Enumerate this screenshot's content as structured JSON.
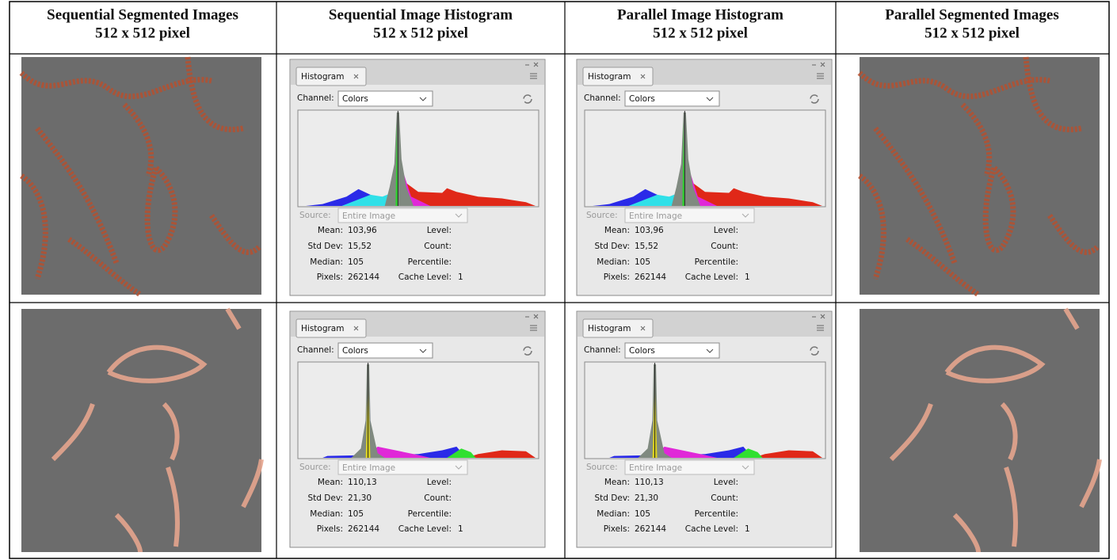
{
  "header": [
    {
      "title": "Sequential Segmented Images",
      "subtitle": "512 x 512 pixel"
    },
    {
      "title": "Sequential Image Histogram",
      "subtitle": "512 x 512 pixel"
    },
    {
      "title": "Parallel Image Histogram",
      "subtitle": "512 x 512 pixel"
    },
    {
      "title": "Parallel Segmented Images",
      "subtitle": "512 x 512 pixel"
    }
  ],
  "rows": [
    {
      "histograms": [
        {
          "tab": "Histogram",
          "channel_label": "Channel:",
          "channel": "Colors",
          "source_label": "Source:",
          "source": "Entire Image",
          "left": [
            {
              "label": "Mean:",
              "value": "103,96"
            },
            {
              "label": "Std Dev:",
              "value": "15,52"
            },
            {
              "label": "Median:",
              "value": "105"
            },
            {
              "label": "Pixels:",
              "value": "262144"
            }
          ],
          "right": [
            {
              "label": "Level:"
            },
            {
              "label": "Count:"
            },
            {
              "label": "Percentile:"
            },
            {
              "label": "Cache Level:",
              "value": "1"
            }
          ]
        },
        {
          "tab": "Histogram",
          "channel_label": "Channel:",
          "channel": "Colors",
          "source_label": "Source:",
          "source": "Entire Image",
          "left": [
            {
              "label": "Mean:",
              "value": "103,96"
            },
            {
              "label": "Std Dev:",
              "value": "15,52"
            },
            {
              "label": "Median:",
              "value": "105"
            },
            {
              "label": "Pixels:",
              "value": "262144"
            }
          ],
          "right": [
            {
              "label": "Level:"
            },
            {
              "label": "Count:"
            },
            {
              "label": "Percentile:"
            },
            {
              "label": "Cache Level:",
              "value": "1"
            }
          ]
        }
      ]
    },
    {
      "histograms": [
        {
          "tab": "Histogram",
          "channel_label": "Channel:",
          "channel": "Colors",
          "source_label": "Source:",
          "source": "Entire Image",
          "left": [
            {
              "label": "Mean:",
              "value": "110,13"
            },
            {
              "label": "Std Dev:",
              "value": "21,30"
            },
            {
              "label": "Median:",
              "value": "105"
            },
            {
              "label": "Pixels:",
              "value": "262144"
            }
          ],
          "right": [
            {
              "label": "Level:"
            },
            {
              "label": "Count:"
            },
            {
              "label": "Percentile:"
            },
            {
              "label": "Cache Level:",
              "value": "1"
            }
          ]
        },
        {
          "tab": "Histogram",
          "channel_label": "Channel:",
          "channel": "Colors",
          "source_label": "Source:",
          "source": "Entire Image",
          "left": [
            {
              "label": "Mean:",
              "value": "110,13"
            },
            {
              "label": "Std Dev:",
              "value": "21,30"
            },
            {
              "label": "Median:",
              "value": "105"
            },
            {
              "label": "Pixels:",
              "value": "262144"
            }
          ],
          "right": [
            {
              "label": "Level:"
            },
            {
              "label": "Count:"
            },
            {
              "label": "Percentile:"
            },
            {
              "label": "Cache Level:",
              "value": "1"
            }
          ]
        }
      ]
    }
  ]
}
